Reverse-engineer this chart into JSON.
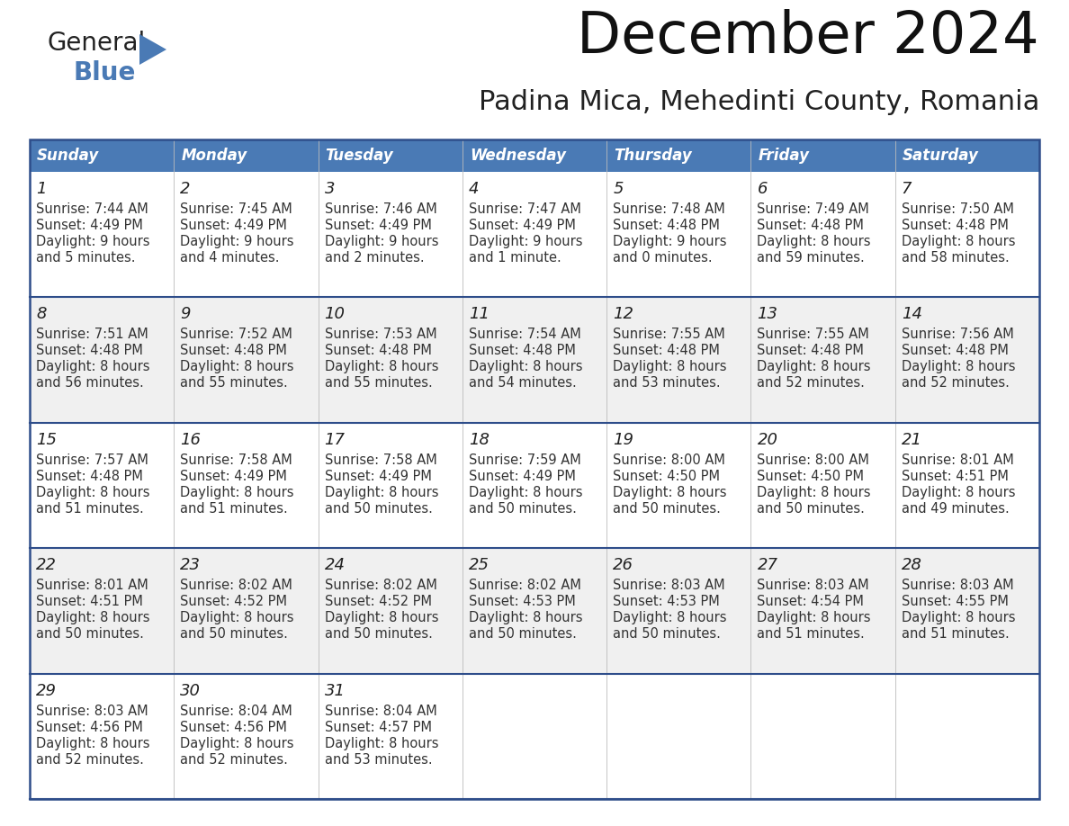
{
  "title": "December 2024",
  "subtitle": "Padina Mica, Mehedinti County, Romania",
  "header_bg_color": "#4a7ab5",
  "header_text_color": "#ffffff",
  "border_color": "#2e4d8a",
  "row_separator_color": "#2e4d8a",
  "odd_row_bg": "#ffffff",
  "even_row_bg": "#f0f0f0",
  "text_color": "#333333",
  "days_of_week": [
    "Sunday",
    "Monday",
    "Tuesday",
    "Wednesday",
    "Thursday",
    "Friday",
    "Saturday"
  ],
  "calendar_data": [
    [
      {
        "day": "1",
        "sunrise": "7:44 AM",
        "sunset": "4:49 PM",
        "daylight_h": "9 hours",
        "daylight_m": "and 5 minutes."
      },
      {
        "day": "2",
        "sunrise": "7:45 AM",
        "sunset": "4:49 PM",
        "daylight_h": "9 hours",
        "daylight_m": "and 4 minutes."
      },
      {
        "day": "3",
        "sunrise": "7:46 AM",
        "sunset": "4:49 PM",
        "daylight_h": "9 hours",
        "daylight_m": "and 2 minutes."
      },
      {
        "day": "4",
        "sunrise": "7:47 AM",
        "sunset": "4:49 PM",
        "daylight_h": "9 hours",
        "daylight_m": "and 1 minute."
      },
      {
        "day": "5",
        "sunrise": "7:48 AM",
        "sunset": "4:48 PM",
        "daylight_h": "9 hours",
        "daylight_m": "and 0 minutes."
      },
      {
        "day": "6",
        "sunrise": "7:49 AM",
        "sunset": "4:48 PM",
        "daylight_h": "8 hours",
        "daylight_m": "and 59 minutes."
      },
      {
        "day": "7",
        "sunrise": "7:50 AM",
        "sunset": "4:48 PM",
        "daylight_h": "8 hours",
        "daylight_m": "and 58 minutes."
      }
    ],
    [
      {
        "day": "8",
        "sunrise": "7:51 AM",
        "sunset": "4:48 PM",
        "daylight_h": "8 hours",
        "daylight_m": "and 56 minutes."
      },
      {
        "day": "9",
        "sunrise": "7:52 AM",
        "sunset": "4:48 PM",
        "daylight_h": "8 hours",
        "daylight_m": "and 55 minutes."
      },
      {
        "day": "10",
        "sunrise": "7:53 AM",
        "sunset": "4:48 PM",
        "daylight_h": "8 hours",
        "daylight_m": "and 55 minutes."
      },
      {
        "day": "11",
        "sunrise": "7:54 AM",
        "sunset": "4:48 PM",
        "daylight_h": "8 hours",
        "daylight_m": "and 54 minutes."
      },
      {
        "day": "12",
        "sunrise": "7:55 AM",
        "sunset": "4:48 PM",
        "daylight_h": "8 hours",
        "daylight_m": "and 53 minutes."
      },
      {
        "day": "13",
        "sunrise": "7:55 AM",
        "sunset": "4:48 PM",
        "daylight_h": "8 hours",
        "daylight_m": "and 52 minutes."
      },
      {
        "day": "14",
        "sunrise": "7:56 AM",
        "sunset": "4:48 PM",
        "daylight_h": "8 hours",
        "daylight_m": "and 52 minutes."
      }
    ],
    [
      {
        "day": "15",
        "sunrise": "7:57 AM",
        "sunset": "4:48 PM",
        "daylight_h": "8 hours",
        "daylight_m": "and 51 minutes."
      },
      {
        "day": "16",
        "sunrise": "7:58 AM",
        "sunset": "4:49 PM",
        "daylight_h": "8 hours",
        "daylight_m": "and 51 minutes."
      },
      {
        "day": "17",
        "sunrise": "7:58 AM",
        "sunset": "4:49 PM",
        "daylight_h": "8 hours",
        "daylight_m": "and 50 minutes."
      },
      {
        "day": "18",
        "sunrise": "7:59 AM",
        "sunset": "4:49 PM",
        "daylight_h": "8 hours",
        "daylight_m": "and 50 minutes."
      },
      {
        "day": "19",
        "sunrise": "8:00 AM",
        "sunset": "4:50 PM",
        "daylight_h": "8 hours",
        "daylight_m": "and 50 minutes."
      },
      {
        "day": "20",
        "sunrise": "8:00 AM",
        "sunset": "4:50 PM",
        "daylight_h": "8 hours",
        "daylight_m": "and 50 minutes."
      },
      {
        "day": "21",
        "sunrise": "8:01 AM",
        "sunset": "4:51 PM",
        "daylight_h": "8 hours",
        "daylight_m": "and 49 minutes."
      }
    ],
    [
      {
        "day": "22",
        "sunrise": "8:01 AM",
        "sunset": "4:51 PM",
        "daylight_h": "8 hours",
        "daylight_m": "and 50 minutes."
      },
      {
        "day": "23",
        "sunrise": "8:02 AM",
        "sunset": "4:52 PM",
        "daylight_h": "8 hours",
        "daylight_m": "and 50 minutes."
      },
      {
        "day": "24",
        "sunrise": "8:02 AM",
        "sunset": "4:52 PM",
        "daylight_h": "8 hours",
        "daylight_m": "and 50 minutes."
      },
      {
        "day": "25",
        "sunrise": "8:02 AM",
        "sunset": "4:53 PM",
        "daylight_h": "8 hours",
        "daylight_m": "and 50 minutes."
      },
      {
        "day": "26",
        "sunrise": "8:03 AM",
        "sunset": "4:53 PM",
        "daylight_h": "8 hours",
        "daylight_m": "and 50 minutes."
      },
      {
        "day": "27",
        "sunrise": "8:03 AM",
        "sunset": "4:54 PM",
        "daylight_h": "8 hours",
        "daylight_m": "and 51 minutes."
      },
      {
        "day": "28",
        "sunrise": "8:03 AM",
        "sunset": "4:55 PM",
        "daylight_h": "8 hours",
        "daylight_m": "and 51 minutes."
      }
    ],
    [
      {
        "day": "29",
        "sunrise": "8:03 AM",
        "sunset": "4:56 PM",
        "daylight_h": "8 hours",
        "daylight_m": "and 52 minutes."
      },
      {
        "day": "30",
        "sunrise": "8:04 AM",
        "sunset": "4:56 PM",
        "daylight_h": "8 hours",
        "daylight_m": "and 52 minutes."
      },
      {
        "day": "31",
        "sunrise": "8:04 AM",
        "sunset": "4:57 PM",
        "daylight_h": "8 hours",
        "daylight_m": "and 53 minutes."
      },
      null,
      null,
      null,
      null
    ]
  ],
  "logo_general_color": "#222222",
  "logo_blue_color": "#4a7ab5",
  "logo_triangle_color": "#4a7ab5"
}
